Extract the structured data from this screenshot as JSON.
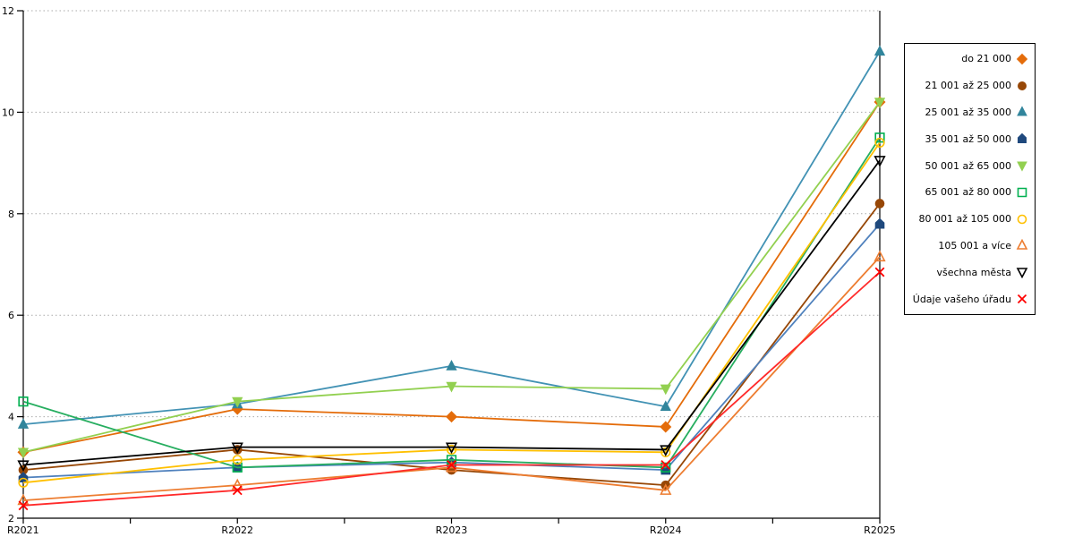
{
  "chart_data": {
    "type": "line",
    "title": "",
    "xlabel": "",
    "ylabel": "",
    "categories": [
      "R2021",
      "R2022",
      "R2023",
      "R2024",
      "R2025"
    ],
    "ylim": [
      2,
      12
    ],
    "yticks": [
      2,
      4,
      6,
      8,
      10,
      12
    ],
    "grid": "dotted-horizontal",
    "legend_position": "right",
    "axis_color": "#000000",
    "grid_color": "#aaaaaa",
    "series": [
      {
        "name": "do 21 000",
        "color": "#E46C0A",
        "line_color": "#E46C0A",
        "marker": "diamond",
        "marker_fill": "filled",
        "values": [
          3.3,
          4.15,
          4.0,
          3.8,
          10.2
        ]
      },
      {
        "name": "21 001 až 25 000",
        "color": "#974706",
        "line_color": "#974706",
        "marker": "circle",
        "marker_fill": "filled",
        "values": [
          2.95,
          3.35,
          2.95,
          2.65,
          8.2
        ]
      },
      {
        "name": "25 001 až 35 000",
        "color": "#31859C",
        "line_color": "#4292B4",
        "marker": "triangle-up",
        "marker_fill": "filled",
        "values": [
          3.85,
          4.25,
          5.0,
          4.2,
          11.2
        ]
      },
      {
        "name": "35 001 až 50 000",
        "color": "#1F497D",
        "line_color": "#4F81BD",
        "marker": "pentagon",
        "marker_fill": "filled",
        "values": [
          2.8,
          3.0,
          3.1,
          2.95,
          7.8
        ]
      },
      {
        "name": "50 001 až 65 000",
        "color": "#92D050",
        "line_color": "#92D050",
        "marker": "triangle-down",
        "marker_fill": "filled",
        "values": [
          3.3,
          4.3,
          4.6,
          4.55,
          10.2
        ]
      },
      {
        "name": "65 001 až 80 000",
        "color": "#00B050",
        "line_color": "#27AE60",
        "marker": "square",
        "marker_fill": "open",
        "values": [
          4.3,
          3.0,
          3.15,
          3.0,
          9.5
        ]
      },
      {
        "name": "80 001 až 105 000",
        "color": "#FFC000",
        "line_color": "#FFC000",
        "marker": "circle",
        "marker_fill": "open",
        "values": [
          2.7,
          3.15,
          3.35,
          3.3,
          9.4
        ]
      },
      {
        "name": "105 001 a více",
        "color": "#ED7D31",
        "line_color": "#ED7D31",
        "marker": "triangle-up",
        "marker_fill": "open",
        "values": [
          2.35,
          2.65,
          3.0,
          2.55,
          7.15
        ]
      },
      {
        "name": "všechna města",
        "color": "#000000",
        "line_color": "#000000",
        "marker": "triangle-down",
        "marker_fill": "open",
        "values": [
          3.05,
          3.4,
          3.4,
          3.35,
          9.05
        ]
      },
      {
        "name": "Údaje vašeho úřadu",
        "color": "#FF0000",
        "line_color": "#FF2A2A",
        "marker": "x",
        "marker_fill": "open",
        "values": [
          2.25,
          2.55,
          3.05,
          3.05,
          6.85
        ]
      }
    ]
  }
}
